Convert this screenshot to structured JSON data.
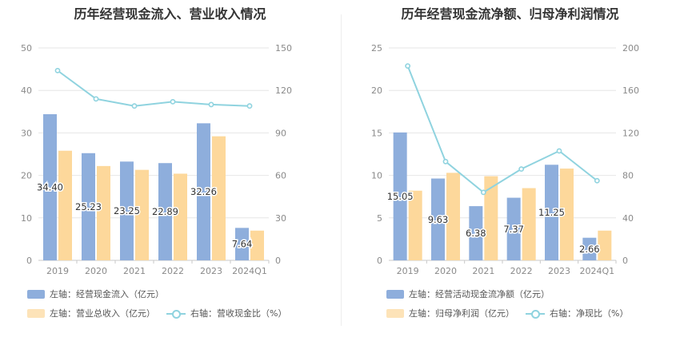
{
  "chart_data": [
    {
      "type": "bar",
      "title": "历年经营现金流入、营业收入情况",
      "categories": [
        "2019",
        "2020",
        "2021",
        "2022",
        "2023",
        "2024Q1"
      ],
      "left_axis": {
        "min": 0,
        "max": 50,
        "ticks": [
          "0",
          "10",
          "20",
          "30",
          "40",
          "50"
        ]
      },
      "right_axis": {
        "min": 0,
        "max": 150,
        "ticks": [
          "0",
          "30",
          "60",
          "90",
          "120",
          "150"
        ]
      },
      "series": [
        {
          "name": "左轴：经营现金流入（亿元）",
          "kind": "bar",
          "axis": "left",
          "color": "#8eaedc",
          "values": [
            34.4,
            25.23,
            23.25,
            22.89,
            32.26,
            7.64
          ],
          "labels": [
            "34.40",
            "25.23",
            "23.25",
            "22.89",
            "32.26",
            "7.64"
          ]
        },
        {
          "name": "左轴：营业总收入（亿元）",
          "kind": "bar",
          "axis": "left",
          "color": "#fdd89b",
          "values": [
            25.8,
            22.2,
            21.3,
            20.4,
            29.2,
            7.0
          ]
        },
        {
          "name": "右轴：营收现金比（%）",
          "kind": "line",
          "axis": "right",
          "color": "#8fd3df",
          "values": [
            134,
            114,
            109,
            112,
            110,
            109
          ]
        }
      ],
      "legend_position": "bottom",
      "grid": true
    },
    {
      "type": "bar",
      "title": "历年经营现金流净额、归母净利润情况",
      "categories": [
        "2019",
        "2020",
        "2021",
        "2022",
        "2023",
        "2024Q1"
      ],
      "left_axis": {
        "min": 0,
        "max": 25,
        "ticks": [
          "0",
          "5",
          "10",
          "15",
          "20",
          "25"
        ]
      },
      "right_axis": {
        "min": 0,
        "max": 200,
        "ticks": [
          "0",
          "40",
          "80",
          "120",
          "160",
          "200"
        ]
      },
      "series": [
        {
          "name": "左轴：经营活动现金流净额（亿元）",
          "kind": "bar",
          "axis": "left",
          "color": "#8eaedc",
          "values": [
            15.05,
            9.63,
            6.38,
            7.37,
            11.25,
            2.66
          ],
          "labels": [
            "15.05",
            "9.63",
            "6.38",
            "7.37",
            "11.25",
            "2.66"
          ]
        },
        {
          "name": "左轴：归母净利润（亿元）",
          "kind": "bar",
          "axis": "left",
          "color": "#fdd89b",
          "values": [
            8.2,
            10.3,
            9.9,
            8.5,
            10.8,
            3.5
          ]
        },
        {
          "name": "右轴：净现比（%）",
          "kind": "line",
          "axis": "right",
          "color": "#8fd3df",
          "values": [
            183,
            93,
            64,
            86,
            103,
            75
          ]
        }
      ],
      "legend_position": "bottom",
      "grid": true
    }
  ]
}
